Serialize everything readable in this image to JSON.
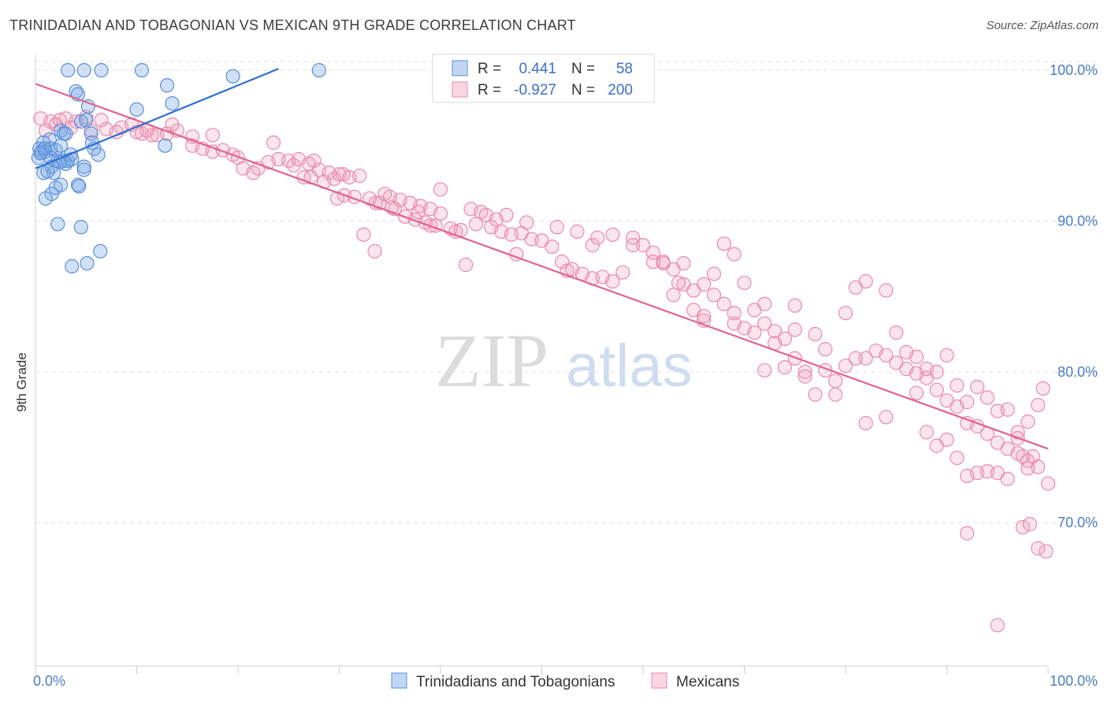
{
  "header": {
    "title": "TRINIDADIAN AND TOBAGONIAN VS MEXICAN 9TH GRADE CORRELATION CHART",
    "source": "Source: ZipAtlas.com"
  },
  "watermark": {
    "zip": "ZIP",
    "atlas": "atlas"
  },
  "legend_top": {
    "rows": [
      {
        "r_label": "R =",
        "r_value": "0.441",
        "n_label": "N =",
        "n_value": "58"
      },
      {
        "r_label": "R =",
        "r_value": "-0.927",
        "n_label": "N =",
        "n_value": "200"
      }
    ]
  },
  "colors": {
    "blue": "#5b8fd8",
    "blue_fill": "rgba(120,165,230,0.35)",
    "blue_line": "#2f6fd0",
    "pink": "#e98aab",
    "pink_fill": "rgba(240,150,180,0.25)",
    "pink_line": "#e0648f",
    "tick_text": "#4a7cc9"
  },
  "chart_data": {
    "type": "scatter",
    "title": "TRINIDADIAN AND TOBAGONIAN VS MEXICAN 9TH GRADE CORRELATION CHART",
    "xlabel": "",
    "ylabel": "9th Grade",
    "xlim": [
      0,
      100
    ],
    "ylim": [
      60.5,
      101
    ],
    "x_tick_labels": [
      "0.0%",
      "100.0%"
    ],
    "y_ticks": [
      70,
      80,
      90,
      100
    ],
    "y_tick_labels": [
      "70.0%",
      "80.0%",
      "90.0%",
      "100.0%"
    ],
    "grid": true,
    "series": [
      {
        "name": "Trinidadians and Tobagonians",
        "R": 0.441,
        "N": 58,
        "trend": {
          "x": [
            0,
            24
          ],
          "y": [
            93.5,
            100.1
          ]
        },
        "points": [
          [
            3.2,
            100
          ],
          [
            4.8,
            100
          ],
          [
            6.5,
            100
          ],
          [
            10.5,
            100
          ],
          [
            19.5,
            99.6
          ],
          [
            28,
            100
          ],
          [
            4,
            98.6
          ],
          [
            4.2,
            98.4
          ],
          [
            13,
            99
          ],
          [
            5.2,
            97.6
          ],
          [
            10,
            97.4
          ],
          [
            13.5,
            97.8
          ],
          [
            4.5,
            96.6
          ],
          [
            5,
            96.7
          ],
          [
            2.5,
            96
          ],
          [
            2.8,
            95.8
          ],
          [
            3,
            95.8
          ],
          [
            1.4,
            95.4
          ],
          [
            0.8,
            95.2
          ],
          [
            0.4,
            94.8
          ],
          [
            0.6,
            94.6
          ],
          [
            1,
            94.6
          ],
          [
            1.5,
            94.8
          ],
          [
            2,
            94.7
          ],
          [
            2.5,
            95
          ],
          [
            5.5,
            95.8
          ],
          [
            5.6,
            95.2
          ],
          [
            12.8,
            95
          ],
          [
            5.8,
            94.8
          ],
          [
            6.2,
            94.4
          ],
          [
            3.5,
            94.4
          ],
          [
            0.3,
            94.2
          ],
          [
            1.5,
            94.2
          ],
          [
            2.2,
            94
          ],
          [
            2.8,
            94
          ],
          [
            3.2,
            94
          ],
          [
            3,
            93.8
          ],
          [
            1.6,
            93.6
          ],
          [
            4.8,
            93.6
          ],
          [
            1.8,
            93.2
          ],
          [
            0.8,
            93.2
          ],
          [
            4.8,
            93.4
          ],
          [
            2,
            92.2
          ],
          [
            2.5,
            92.4
          ],
          [
            4.2,
            92.4
          ],
          [
            4.3,
            92.3
          ],
          [
            1.6,
            91.8
          ],
          [
            1,
            91.5
          ],
          [
            2.2,
            89.8
          ],
          [
            4.5,
            89.6
          ],
          [
            6.4,
            88
          ],
          [
            3.6,
            87
          ],
          [
            5.1,
            87.2
          ],
          [
            0.5,
            94.5
          ],
          [
            2.4,
            93.9
          ],
          [
            3.6,
            94.1
          ],
          [
            1.2,
            93.3
          ],
          [
            0.9,
            94.8
          ]
        ]
      },
      {
        "name": "Mexicans",
        "R": -0.927,
        "N": 200,
        "trend": {
          "x": [
            0,
            100
          ],
          "y": [
            99.1,
            74.9
          ]
        },
        "points": [
          [
            0.5,
            96.8
          ],
          [
            1.5,
            96.6
          ],
          [
            2.4,
            96.7
          ],
          [
            3,
            96.8
          ],
          [
            4,
            96.6
          ],
          [
            5,
            96.9
          ],
          [
            6.5,
            96.7
          ],
          [
            1,
            96
          ],
          [
            2,
            96.4
          ],
          [
            3.5,
            96.2
          ],
          [
            5.5,
            96
          ],
          [
            7,
            96.1
          ],
          [
            8.5,
            96.2
          ],
          [
            9.5,
            96.4
          ],
          [
            10.5,
            95.8
          ],
          [
            11,
            96
          ],
          [
            12,
            95.7
          ],
          [
            13,
            95.8
          ],
          [
            14,
            96
          ],
          [
            15.5,
            95.6
          ],
          [
            8,
            95.9
          ],
          [
            10,
            95.9
          ],
          [
            11.5,
            95.7
          ],
          [
            13.5,
            96.4
          ],
          [
            17.5,
            95.7
          ],
          [
            15.5,
            95
          ],
          [
            16.5,
            94.8
          ],
          [
            17.5,
            94.6
          ],
          [
            18.5,
            94.7
          ],
          [
            19.5,
            94.4
          ],
          [
            20,
            94.2
          ],
          [
            20.5,
            93.5
          ],
          [
            21.5,
            93.2
          ],
          [
            22,
            93.5
          ],
          [
            23,
            93.9
          ],
          [
            24,
            94.1
          ],
          [
            25,
            94
          ],
          [
            25.5,
            93.7
          ],
          [
            26,
            94.1
          ],
          [
            27,
            93.8
          ],
          [
            27.5,
            94
          ],
          [
            28,
            93.4
          ],
          [
            23.5,
            95.2
          ],
          [
            29,
            93.2
          ],
          [
            29.5,
            92.8
          ],
          [
            30,
            93.1
          ],
          [
            31,
            92.9
          ],
          [
            32,
            93
          ],
          [
            26.5,
            92.9
          ],
          [
            28.5,
            92.6
          ],
          [
            30.5,
            91.7
          ],
          [
            31.5,
            91.6
          ],
          [
            33,
            91.5
          ],
          [
            34,
            91.2
          ],
          [
            35,
            91.6
          ],
          [
            36,
            91.4
          ],
          [
            37,
            91.2
          ],
          [
            38,
            91
          ],
          [
            39,
            90.8
          ],
          [
            40,
            92.1
          ],
          [
            34.5,
            91.8
          ],
          [
            35.5,
            90.8
          ],
          [
            36.5,
            90.3
          ],
          [
            37.5,
            90.1
          ],
          [
            38.5,
            89.9
          ],
          [
            39,
            89.7
          ],
          [
            40,
            90.5
          ],
          [
            41,
            89.5
          ],
          [
            42,
            89.4
          ],
          [
            43,
            90.8
          ],
          [
            44,
            90.6
          ],
          [
            44.5,
            90.4
          ],
          [
            45,
            89.6
          ],
          [
            46,
            89.3
          ],
          [
            47,
            89.1
          ],
          [
            48,
            89.2
          ],
          [
            49,
            88.8
          ],
          [
            42.5,
            87.1
          ],
          [
            47.5,
            87.8
          ],
          [
            50,
            88.7
          ],
          [
            51,
            88.3
          ],
          [
            52,
            87.3
          ],
          [
            52.5,
            86.7
          ],
          [
            53,
            86.8
          ],
          [
            54,
            86.5
          ],
          [
            55,
            86.2
          ],
          [
            56,
            86.3
          ],
          [
            57,
            86
          ],
          [
            58,
            86.6
          ],
          [
            57,
            89.1
          ],
          [
            59,
            88.9
          ],
          [
            60,
            88.4
          ],
          [
            61,
            87.9
          ],
          [
            62,
            87.2
          ],
          [
            63,
            86.8
          ],
          [
            64,
            85.8
          ],
          [
            65,
            85.4
          ],
          [
            66,
            85.8
          ],
          [
            67,
            85.1
          ],
          [
            68,
            84.5
          ],
          [
            69,
            83.9
          ],
          [
            70,
            85.9
          ],
          [
            71,
            84.1
          ],
          [
            72,
            83.2
          ],
          [
            73,
            82.7
          ],
          [
            74,
            82.2
          ],
          [
            75,
            82.8
          ],
          [
            70,
            82.9
          ],
          [
            72,
            80.1
          ],
          [
            74,
            80.3
          ],
          [
            76,
            79.7
          ],
          [
            78,
            80.1
          ],
          [
            79,
            79.4
          ],
          [
            80,
            80.4
          ],
          [
            81,
            80.9
          ],
          [
            82,
            80.9
          ],
          [
            83,
            81.4
          ],
          [
            84,
            81.1
          ],
          [
            85,
            80.6
          ],
          [
            86,
            80.2
          ],
          [
            87,
            79.9
          ],
          [
            88,
            79.6
          ],
          [
            89,
            78.8
          ],
          [
            90,
            78.1
          ],
          [
            91,
            77.7
          ],
          [
            92,
            76.6
          ],
          [
            93,
            76.4
          ],
          [
            94,
            75.9
          ],
          [
            95,
            75.3
          ],
          [
            96,
            74.9
          ],
          [
            97,
            74.6
          ],
          [
            98,
            74.1
          ],
          [
            99,
            73.7
          ],
          [
            100,
            72.6
          ],
          [
            66,
            83.4
          ],
          [
            68,
            88.5
          ],
          [
            69,
            87.8
          ],
          [
            72,
            84.5
          ],
          [
            77,
            78.5
          ],
          [
            79,
            78.5
          ],
          [
            82,
            76.6
          ],
          [
            84,
            77
          ],
          [
            87,
            78.6
          ],
          [
            88,
            76
          ],
          [
            89,
            75.1
          ],
          [
            90,
            75.5
          ],
          [
            91,
            74.3
          ],
          [
            92,
            73.1
          ],
          [
            93,
            73.3
          ],
          [
            94,
            73.4
          ],
          [
            95,
            73.3
          ],
          [
            96,
            72.9
          ],
          [
            97,
            76
          ],
          [
            98,
            76.7
          ],
          [
            99,
            77.8
          ],
          [
            98.5,
            74.4
          ],
          [
            99.5,
            78.9
          ],
          [
            75,
            84.4
          ],
          [
            77,
            82.5
          ],
          [
            78,
            81.5
          ],
          [
            80,
            83.9
          ],
          [
            81,
            85.6
          ],
          [
            82,
            86
          ],
          [
            84,
            85.4
          ],
          [
            85,
            82.6
          ],
          [
            86,
            81.3
          ],
          [
            87,
            81
          ],
          [
            88,
            80.2
          ],
          [
            89,
            80
          ],
          [
            90,
            81.1
          ],
          [
            91,
            79.1
          ],
          [
            92,
            78
          ],
          [
            93,
            79
          ],
          [
            94,
            78.3
          ],
          [
            95,
            77.4
          ],
          [
            96,
            77.5
          ],
          [
            97,
            75.6
          ],
          [
            98,
            73.6
          ],
          [
            99,
            68.3
          ],
          [
            99.8,
            68.1
          ],
          [
            92,
            69.3
          ],
          [
            97.5,
            69.7
          ],
          [
            98.2,
            69.9
          ],
          [
            95,
            63.2
          ],
          [
            97.5,
            74.4
          ],
          [
            59,
            88.4
          ],
          [
            61,
            87.3
          ],
          [
            63,
            85.1
          ],
          [
            63.5,
            85.9
          ],
          [
            65,
            84.1
          ],
          [
            66,
            83.7
          ],
          [
            67,
            86.5
          ],
          [
            69,
            83.2
          ],
          [
            71,
            82.6
          ],
          [
            73,
            81.9
          ],
          [
            75,
            80.9
          ],
          [
            76,
            80
          ],
          [
            62,
            87.3
          ],
          [
            64,
            87.2
          ],
          [
            55,
            88.4
          ],
          [
            55.5,
            88.9
          ],
          [
            53.5,
            89.3
          ],
          [
            51.5,
            89.6
          ],
          [
            48.5,
            89.9
          ],
          [
            46.5,
            90.4
          ],
          [
            45.5,
            90.1
          ],
          [
            43.5,
            89.8
          ],
          [
            41.5,
            89.3
          ],
          [
            39.5,
            89.7
          ],
          [
            37.8,
            90.6
          ],
          [
            35.2,
            90.9
          ],
          [
            33.6,
            91.2
          ],
          [
            32.4,
            89.1
          ],
          [
            29.8,
            91.5
          ],
          [
            30.4,
            93.1
          ],
          [
            27.2,
            92.9
          ],
          [
            33.5,
            88
          ]
        ]
      }
    ]
  },
  "legend_bottom": {
    "items": [
      {
        "label": "Trinidadians and Tobagonians"
      },
      {
        "label": "Mexicans"
      }
    ]
  }
}
